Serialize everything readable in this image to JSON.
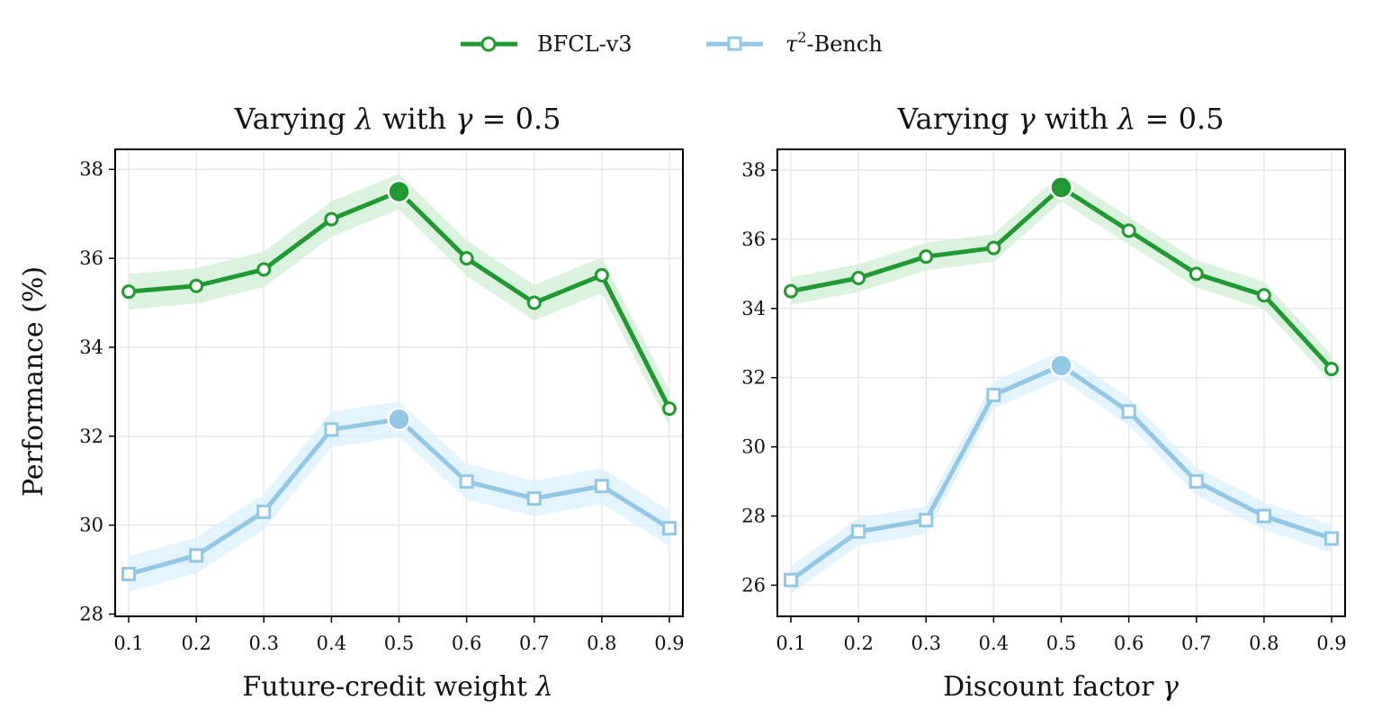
{
  "legend": {
    "items": [
      {
        "label_main": "BFCL-v3",
        "label_sup": "",
        "label_rest": "",
        "color": "#1f9a30",
        "marker": "circle"
      },
      {
        "label_main": "τ",
        "label_sup": "2",
        "label_rest": "-Bench",
        "color": "#92c7e6",
        "marker": "square"
      }
    ]
  },
  "chart_data": [
    {
      "type": "line",
      "title_pre": "Varying ",
      "title_var": "λ",
      "title_mid": " with ",
      "title_var2": "γ",
      "title_post": " = 0.5",
      "xlabel_pre": "Future-credit weight ",
      "xlabel_var": "λ",
      "ylabel": "Performance (%)",
      "x": [
        0.1,
        0.2,
        0.3,
        0.4,
        0.5,
        0.6,
        0.7,
        0.8,
        0.9
      ],
      "x_tick_labels": [
        "0.1",
        "0.2",
        "0.3",
        "0.4",
        "0.5",
        "0.6",
        "0.7",
        "0.8",
        "0.9"
      ],
      "xlim": [
        0.08,
        0.92
      ],
      "ylim": [
        27.95,
        38.45
      ],
      "yticks": [
        28,
        30,
        32,
        34,
        36,
        38
      ],
      "grid": true,
      "highlight_x": 0.5,
      "series": [
        {
          "name": "BFCL-v3",
          "color": "#1f9a30",
          "band_color": "#cdeed3",
          "band": 0.4,
          "marker": "circle",
          "values": [
            35.25,
            35.38,
            35.75,
            36.88,
            37.5,
            36.0,
            35.0,
            35.62,
            32.62
          ]
        },
        {
          "name": "τ²-Bench",
          "color": "#92c7e6",
          "band_color": "#daf0fb",
          "band": 0.4,
          "marker": "square",
          "values": [
            28.9,
            29.32,
            30.3,
            32.15,
            32.38,
            30.98,
            30.6,
            30.88,
            29.93
          ]
        }
      ]
    },
    {
      "type": "line",
      "title_pre": "Varying ",
      "title_var": "γ",
      "title_mid": " with ",
      "title_var2": "λ",
      "title_post": " = 0.5",
      "xlabel_pre": "Discount factor ",
      "xlabel_var": "γ",
      "ylabel": "",
      "x": [
        0.1,
        0.2,
        0.3,
        0.4,
        0.5,
        0.6,
        0.7,
        0.8,
        0.9
      ],
      "x_tick_labels": [
        "0.1",
        "0.2",
        "0.3",
        "0.4",
        "0.5",
        "0.6",
        "0.7",
        "0.8",
        "0.9"
      ],
      "xlim": [
        0.08,
        0.92
      ],
      "ylim": [
        25.1,
        38.6
      ],
      "yticks": [
        26,
        28,
        30,
        32,
        34,
        36,
        38
      ],
      "grid": true,
      "highlight_x": 0.5,
      "series": [
        {
          "name": "BFCL-v3",
          "color": "#1f9a30",
          "band_color": "#cdeed3",
          "band": 0.4,
          "marker": "circle",
          "values": [
            34.5,
            34.88,
            35.5,
            35.75,
            37.5,
            36.25,
            35.0,
            34.38,
            32.25
          ]
        },
        {
          "name": "τ²-Bench",
          "color": "#92c7e6",
          "band_color": "#daf0fb",
          "band": 0.4,
          "marker": "square",
          "values": [
            26.15,
            27.55,
            27.88,
            31.5,
            32.35,
            31.02,
            29.0,
            28.0,
            27.35
          ]
        }
      ]
    }
  ]
}
